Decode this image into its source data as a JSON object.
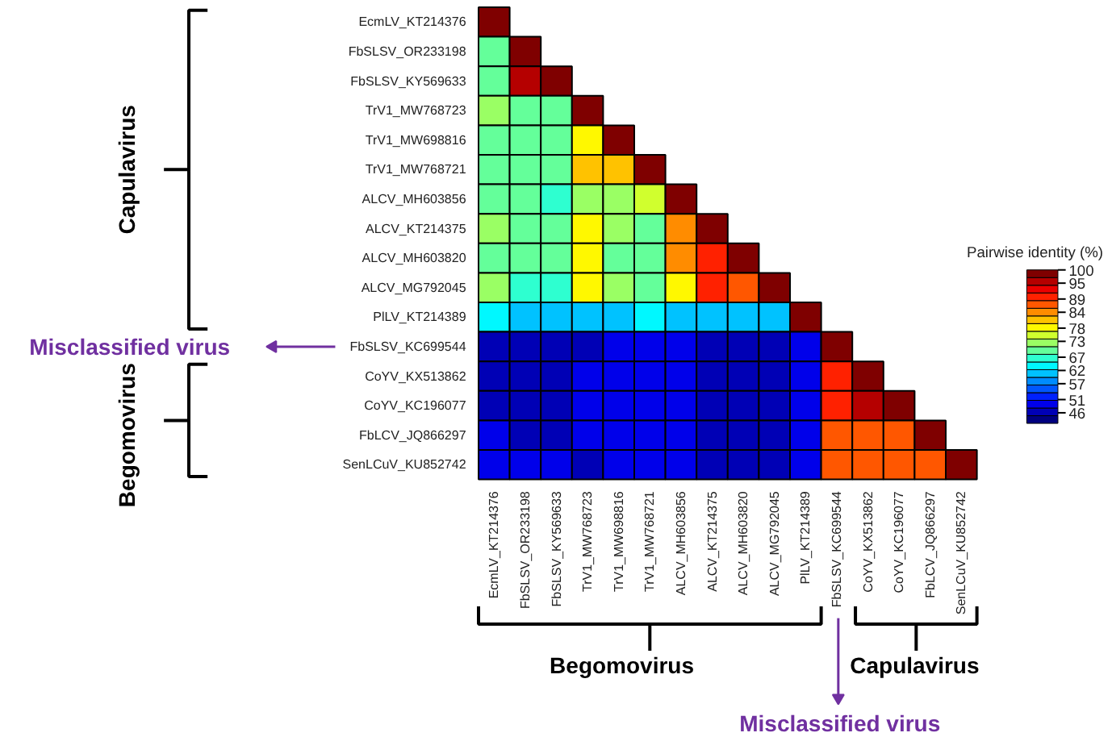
{
  "chart_data": {
    "type": "heatmap",
    "categories": [
      "EcmLV_KT214376",
      "FbSLSV_OR233198",
      "FbSLSV_KY569633",
      "TrV1_MW768723",
      "TrV1_MW698816",
      "TrV1_MW768721",
      "ALCV_MH603856",
      "ALCV_KT214375",
      "ALCV_MH603820",
      "ALCV_MG792045",
      "PlLV_KT214389",
      "FbSLSV_KC699544",
      "CoYV_KX513862",
      "CoYV_KC196077",
      "FbLCV_JQ866297",
      "SenLCuV_KU852742"
    ],
    "y_categories": [
      "EcmLV_KT214376",
      "FbSLSV_OR233198",
      "FbSLSV_KY569633",
      "TrV1_MW768723",
      "TrV1_MW698816",
      "TrV1_MW768721",
      "ALCV_MH603856",
      "ALCV_KT214375",
      "ALCV_MH603820",
      "ALCV_MG792045",
      "PlLV_KT214389",
      "FbSLSV_KC699544",
      "CoYV_KX513862",
      "CoYV_KC196077",
      "FbLCV_JQ866297",
      "SenLCuV_KU852742"
    ],
    "cells": [
      [
        100,
        null,
        null,
        null,
        null,
        null,
        null,
        null,
        null,
        null,
        null,
        null,
        null,
        null,
        null,
        null
      ],
      [
        70,
        100,
        null,
        null,
        null,
        null,
        null,
        null,
        null,
        null,
        null,
        null,
        null,
        null,
        null,
        null
      ],
      [
        69,
        95,
        100,
        null,
        null,
        null,
        null,
        null,
        null,
        null,
        null,
        null,
        null,
        null,
        null,
        null
      ],
      [
        73,
        69,
        69,
        100,
        null,
        null,
        null,
        null,
        null,
        null,
        null,
        null,
        null,
        null,
        null,
        null
      ],
      [
        69,
        69,
        69,
        77,
        100,
        null,
        null,
        null,
        null,
        null,
        null,
        null,
        null,
        null,
        null,
        null
      ],
      [
        69,
        69,
        69,
        82,
        82,
        100,
        null,
        null,
        null,
        null,
        null,
        null,
        null,
        null,
        null,
        null
      ],
      [
        69,
        69,
        68,
        72,
        73,
        75,
        100,
        null,
        null,
        null,
        null,
        null,
        null,
        null,
        null,
        null
      ],
      [
        73,
        69,
        69,
        79,
        72,
        70,
        85,
        100,
        null,
        null,
        null,
        null,
        null,
        null,
        null,
        null
      ],
      [
        69,
        69,
        69,
        79,
        70,
        70,
        83,
        91,
        100,
        null,
        null,
        null,
        null,
        null,
        null,
        null
      ],
      [
        71,
        68,
        67,
        79,
        71,
        70,
        79,
        91,
        88,
        100,
        null,
        null,
        null,
        null,
        null,
        null
      ],
      [
        63,
        62,
        62,
        62,
        62,
        63,
        62,
        60,
        61,
        62,
        100,
        null,
        null,
        null,
        null,
        null
      ],
      [
        46,
        46,
        46,
        47,
        48,
        48,
        48,
        46,
        47,
        47,
        49,
        100,
        null,
        null,
        null,
        null
      ],
      [
        46,
        46,
        46,
        48,
        48,
        48,
        49,
        46,
        47,
        46,
        49,
        91,
        100,
        null,
        null,
        null
      ],
      [
        46,
        47,
        47,
        48,
        48,
        48,
        49,
        47,
        47,
        47,
        49,
        91,
        95,
        100,
        null,
        null
      ],
      [
        48,
        47,
        47,
        48,
        48,
        48,
        49,
        47,
        47,
        47,
        49,
        88,
        87,
        86,
        100,
        null
      ],
      [
        48,
        48,
        49,
        46,
        48,
        48,
        50,
        47,
        47,
        47,
        50,
        88,
        87,
        87,
        87,
        100
      ]
    ],
    "clabel": "Pairwise identity (%)",
    "clim": [
      42,
      100
    ],
    "cticks": [
      46,
      51,
      57,
      62,
      67,
      73,
      78,
      84,
      89,
      95,
      100
    ],
    "annotations": [
      "Capulavirus",
      "Misclassified virus",
      "Begomovirus",
      "Begomovirus",
      "Capulavirus",
      "Misclassified virus"
    ]
  }
}
